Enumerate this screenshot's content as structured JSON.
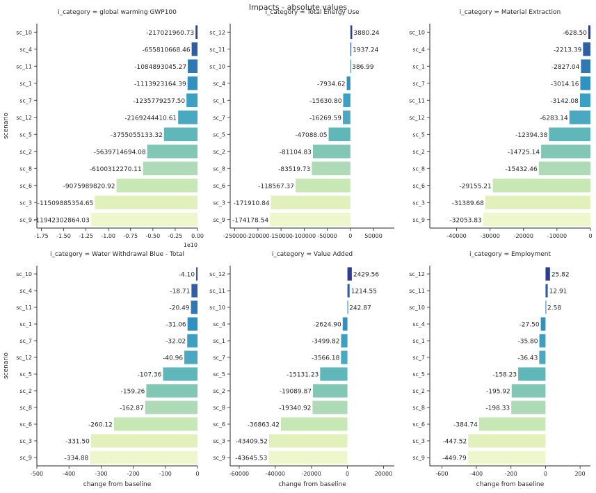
{
  "figure": {
    "title": "Impacts - absolute values",
    "ylabel": "scenario",
    "xlabel": "change from baseline",
    "palette": [
      "#2c3e8d",
      "#2f5ea3",
      "#2f78b3",
      "#3191c1",
      "#3ba0c2",
      "#4aa8c0",
      "#60b7b9",
      "#82c6b5",
      "#afdab8",
      "#c7e8b5",
      "#e2f1bb",
      "#eef7cb"
    ]
  },
  "chart_data": [
    {
      "type": "bar",
      "orientation": "horizontal",
      "title": "i_category = global warming GWP100",
      "categories": [
        "sc_10",
        "sc_4",
        "sc_11",
        "sc_1",
        "sc_7",
        "sc_12",
        "sc_5",
        "sc_2",
        "sc_8",
        "sc_6",
        "sc_3",
        "sc_9"
      ],
      "values": [
        -217021960.73,
        -655810668.46,
        -1084893045.27,
        -1113923164.39,
        -1235779257.5,
        -2169244410.61,
        -3755055133.32,
        -5639714694.08,
        -6100312270.11,
        -9075989820.92,
        -11509885354.65,
        -11942302864.03
      ],
      "labels": [
        "-217021960.73",
        "-655810668.46",
        "-1084893045.27",
        "-1113923164.39",
        "-1235779257.50",
        "-2169244410.61",
        "-3755055133.32",
        "-5639714694.08",
        "-6100312270.11",
        "-9075989820.92",
        "-11509885354.65",
        "-11942302864.03"
      ],
      "xlim": [
        -1.8,
        0.0
      ],
      "xticks": [
        -1.75,
        -1.5,
        -1.25,
        -1.0,
        -0.75,
        -0.5,
        -0.25,
        0.0
      ],
      "xticklabels": [
        "-1.75",
        "-1.50",
        "-1.25",
        "-1.00",
        "-0.75",
        "-0.50",
        "-0.25",
        "0.00"
      ],
      "scale": 10000000000,
      "offset_text": "1e10",
      "ylabel": "scenario",
      "xlabel": ""
    },
    {
      "type": "bar",
      "orientation": "horizontal",
      "title": "i_category = Total Energy Use",
      "categories": [
        "sc_12",
        "sc_11",
        "sc_10",
        "sc_4",
        "sc_1",
        "sc_7",
        "sc_5",
        "sc_2",
        "sc_8",
        "sc_6",
        "sc_3",
        "sc_9"
      ],
      "values": [
        3880.24,
        1937.24,
        386.99,
        -7934.62,
        -15630.8,
        -16269.59,
        -47088.05,
        -81104.83,
        -83519.73,
        -118567.37,
        -171910.84,
        -174178.54
      ],
      "labels": [
        "3880.24",
        "1937.24",
        "386.99",
        "-7934.62",
        "-15630.80",
        "-16269.59",
        "-47088.05",
        "-81104.83",
        "-83519.73",
        "-118567.37",
        "-171910.84",
        "-174178.54"
      ],
      "xlim": [
        -260000,
        95000
      ],
      "xticks": [
        -250000,
        -200000,
        -150000,
        -100000,
        -50000,
        0,
        50000
      ],
      "xticklabels": [
        "-250000",
        "-200000",
        "-150000",
        "-100000",
        "-50000",
        "0",
        "50000"
      ],
      "ylabel": "",
      "xlabel": ""
    },
    {
      "type": "bar",
      "orientation": "horizontal",
      "title": "i_category = Material Extraction",
      "categories": [
        "sc_10",
        "sc_4",
        "sc_1",
        "sc_7",
        "sc_11",
        "sc_12",
        "sc_5",
        "sc_2",
        "sc_8",
        "sc_6",
        "sc_3",
        "sc_9"
      ],
      "values": [
        -628.5,
        -2213.39,
        -2827.04,
        -3014.16,
        -3142.08,
        -6283.14,
        -12394.38,
        -14725.14,
        -15432.46,
        -29155.21,
        -31389.68,
        -32053.83
      ],
      "labels": [
        "-628.50",
        "-2213.39",
        "-2827.04",
        "-3014.16",
        "-3142.08",
        "-6283.14",
        "-12394.38",
        "-14725.14",
        "-15432.46",
        "-29155.21",
        "-31389.68",
        "-32053.83"
      ],
      "xlim": [
        -48000,
        0
      ],
      "xticks": [
        -40000,
        -30000,
        -20000,
        -10000,
        0
      ],
      "xticklabels": [
        "-40000",
        "-30000",
        "-20000",
        "-10000",
        "0"
      ],
      "ylabel": "",
      "xlabel": ""
    },
    {
      "type": "bar",
      "orientation": "horizontal",
      "title": "i_category = Water Withdrawal Blue - Total",
      "categories": [
        "sc_10",
        "sc_4",
        "sc_11",
        "sc_1",
        "sc_7",
        "sc_12",
        "sc_5",
        "sc_2",
        "sc_8",
        "sc_6",
        "sc_3",
        "sc_9"
      ],
      "values": [
        -4.1,
        -18.71,
        -20.49,
        -31.06,
        -32.02,
        -40.96,
        -107.36,
        -159.26,
        -162.87,
        -260.12,
        -331.5,
        -334.88
      ],
      "labels": [
        "-4.10",
        "-18.71",
        "-20.49",
        "-31.06",
        "-32.02",
        "-40.96",
        "-107.36",
        "-159.26",
        "-162.87",
        "-260.12",
        "-331.50",
        "-334.88"
      ],
      "xlim": [
        -500,
        0
      ],
      "xticks": [
        -500,
        -400,
        -300,
        -200,
        -100,
        0
      ],
      "xticklabels": [
        "-500",
        "-400",
        "-300",
        "-200",
        "-100",
        "0"
      ],
      "ylabel": "scenario",
      "xlabel": "change from baseline"
    },
    {
      "type": "bar",
      "orientation": "horizontal",
      "title": "i_category = Value Added",
      "categories": [
        "sc_12",
        "sc_11",
        "sc_10",
        "sc_4",
        "sc_1",
        "sc_7",
        "sc_5",
        "sc_2",
        "sc_8",
        "sc_6",
        "sc_3",
        "sc_9"
      ],
      "values": [
        2429.56,
        1214.55,
        242.87,
        -2624.9,
        -3499.82,
        -3566.18,
        -15131.23,
        -19089.87,
        -19340.92,
        -36863.42,
        -43409.52,
        -43645.53
      ],
      "labels": [
        "2429.56",
        "1214.55",
        "242.87",
        "-2624.90",
        "-3499.82",
        "-3566.18",
        "-15131.23",
        "-19089.87",
        "-19340.92",
        "-36863.42",
        "-43409.52",
        "-43645.53"
      ],
      "xlim": [
        -65000,
        26000
      ],
      "xticks": [
        -60000,
        -40000,
        -20000,
        0,
        20000
      ],
      "xticklabels": [
        "-60000",
        "-40000",
        "-20000",
        "0",
        "20000"
      ],
      "ylabel": "",
      "xlabel": "change from baseline"
    },
    {
      "type": "bar",
      "orientation": "horizontal",
      "title": "i_category = Employment",
      "categories": [
        "sc_12",
        "sc_11",
        "sc_10",
        "sc_4",
        "sc_1",
        "sc_7",
        "sc_5",
        "sc_2",
        "sc_8",
        "sc_6",
        "sc_3",
        "sc_9"
      ],
      "values": [
        25.82,
        12.91,
        2.58,
        -27.5,
        -35.8,
        -36.43,
        -158.23,
        -195.92,
        -198.33,
        -384.74,
        -447.52,
        -449.79
      ],
      "labels": [
        "25.82",
        "12.91",
        "2.58",
        "-27.50",
        "-35.80",
        "-36.43",
        "-158.23",
        "-195.92",
        "-198.33",
        "-384.74",
        "-447.52",
        "-449.79"
      ],
      "xlim": [
        -670,
        260
      ],
      "xticks": [
        -600,
        -400,
        -200,
        0,
        200
      ],
      "xticklabels": [
        "-600",
        "-400",
        "-200",
        "0",
        "200"
      ],
      "ylabel": "",
      "xlabel": "change from baseline"
    }
  ]
}
